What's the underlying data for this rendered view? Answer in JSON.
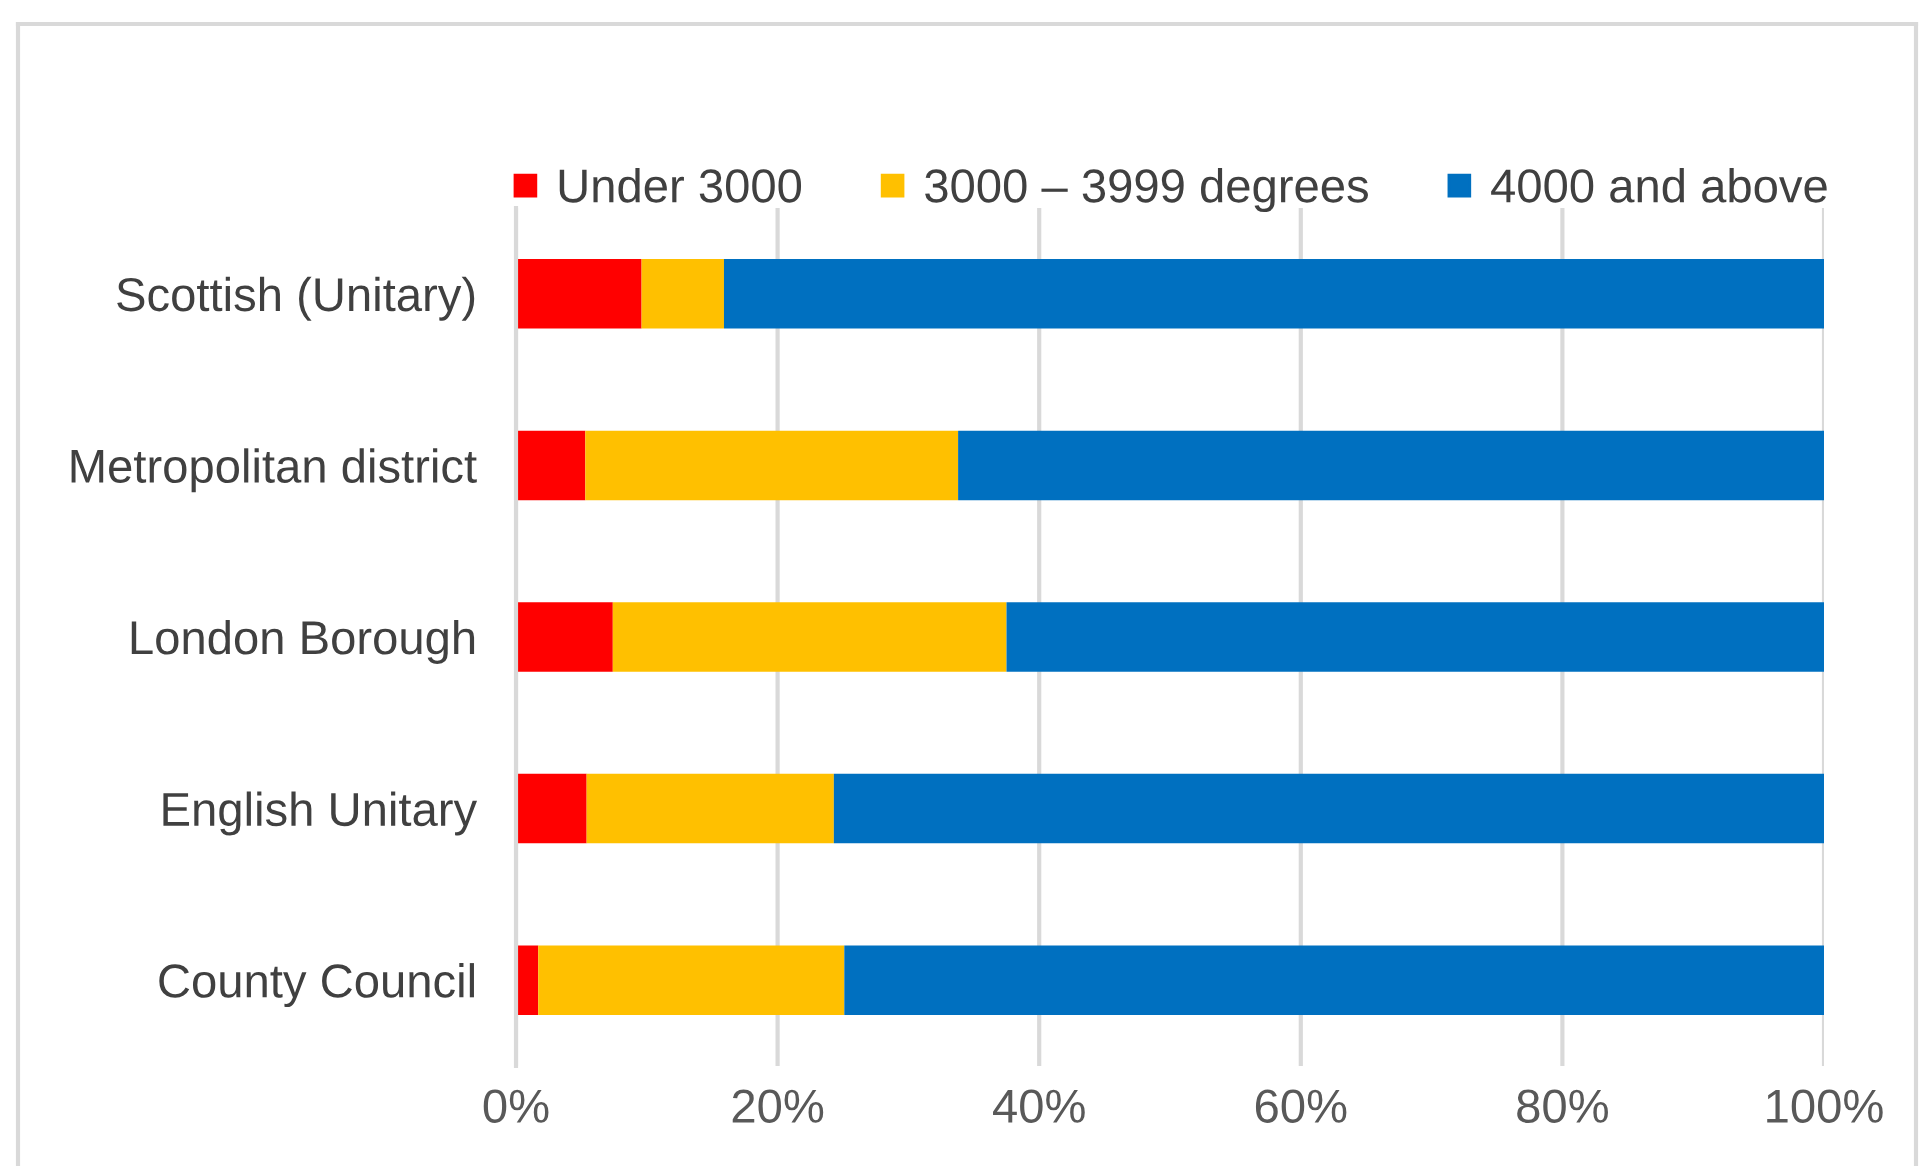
{
  "chart_data": {
    "type": "bar",
    "orientation": "horizontal",
    "stacked": true,
    "categories": [
      "Scottish (Unitary)",
      "Metropolitan district",
      "London Borough",
      "English Unitary",
      "County Council"
    ],
    "series": [
      {
        "name": "Under 3000",
        "color": "#ff0000",
        "values": [
          9.6,
          5.3,
          7.4,
          5.4,
          1.7
        ]
      },
      {
        "name": "3000 – 3999 degrees",
        "color": "#ffc000",
        "values": [
          6.3,
          28.5,
          30.1,
          18.9,
          23.4
        ]
      },
      {
        "name": "4000 and above",
        "color": "#0070c0",
        "values": [
          84.1,
          66.2,
          62.5,
          75.7,
          74.9
        ]
      }
    ],
    "xlim": [
      0,
      100
    ],
    "xticks": [
      {
        "value": 0,
        "label": "0%"
      },
      {
        "value": 20,
        "label": "20%"
      },
      {
        "value": 40,
        "label": "40%"
      },
      {
        "value": 60,
        "label": "60%"
      },
      {
        "value": 80,
        "label": "80%"
      },
      {
        "value": 100,
        "label": "100%"
      }
    ],
    "grid": "x",
    "legend": "top"
  }
}
